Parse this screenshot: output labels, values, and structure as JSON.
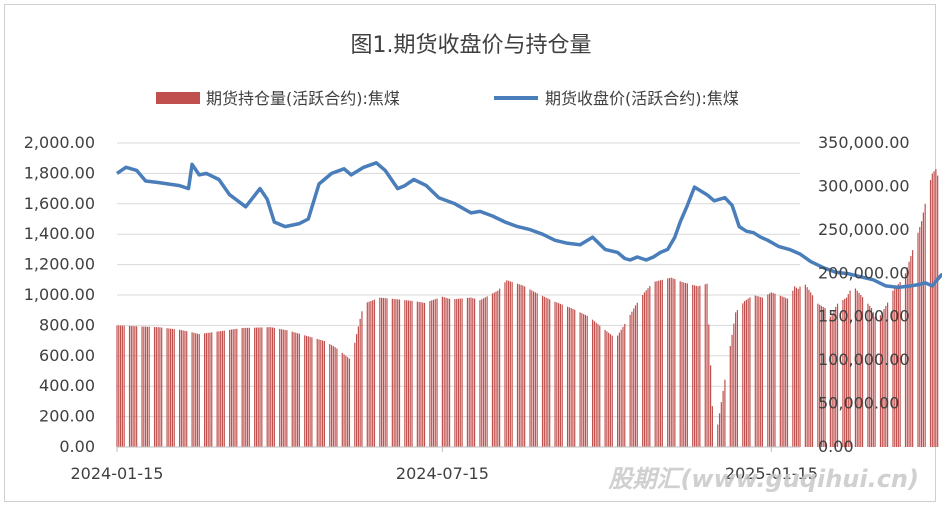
{
  "chart_data": {
    "type": "bar+line",
    "title": "图1.期货收盘价与持仓量",
    "legend_position": "top",
    "x_ticks": [
      "2024-01-15",
      "2024-07-15",
      "2025-01-15"
    ],
    "x_start": "2024-01-15",
    "x_end": "2025-01-31",
    "y_left": {
      "ticks": [
        "0.00",
        "200.00",
        "400.00",
        "600.00",
        "800.00",
        "1,000.00",
        "1,200.00",
        "1,400.00",
        "1,600.00",
        "1,800.00",
        "2,000.00"
      ],
      "lim": [
        0,
        2000
      ]
    },
    "y_right": {
      "ticks": [
        "0.00",
        "50,000.00",
        "100,000.00",
        "150,000.00",
        "200,000.00",
        "250,000.00",
        "300,000.00",
        "350,000.00"
      ],
      "lim": [
        0,
        350000
      ]
    },
    "grid": "horizontal",
    "series": [
      {
        "name": "期货持仓量(活跃合约):焦煤",
        "type": "bar",
        "axis": "right",
        "color": "#c0504d",
        "points": [
          [
            "2024-01-15",
            140000
          ],
          [
            "2024-02-07",
            138000
          ],
          [
            "2024-02-19",
            135000
          ],
          [
            "2024-02-24",
            133000
          ],
          [
            "2024-03-01",
            130000
          ],
          [
            "2024-03-15",
            134000
          ],
          [
            "2024-03-25",
            137000
          ],
          [
            "2024-04-10",
            138000
          ],
          [
            "2024-04-20",
            134000
          ],
          [
            "2024-04-30",
            128000
          ],
          [
            "2024-05-10",
            122000
          ],
          [
            "2024-05-16",
            115000
          ],
          [
            "2024-05-25",
            100000
          ],
          [
            "2024-05-28",
            130000
          ],
          [
            "2024-06-01",
            165000
          ],
          [
            "2024-06-10",
            172000
          ],
          [
            "2024-06-20",
            170000
          ],
          [
            "2024-06-29",
            168000
          ],
          [
            "2024-07-05",
            166000
          ],
          [
            "2024-07-15",
            173000
          ],
          [
            "2024-07-20",
            170000
          ],
          [
            "2024-07-31",
            172000
          ],
          [
            "2024-08-05",
            169000
          ],
          [
            "2024-08-15",
            180000
          ],
          [
            "2024-08-20",
            192000
          ],
          [
            "2024-08-29",
            186000
          ],
          [
            "2024-09-05",
            178000
          ],
          [
            "2024-09-15",
            168000
          ],
          [
            "2024-09-25",
            160000
          ],
          [
            "2024-10-05",
            150000
          ],
          [
            "2024-10-12",
            138000
          ],
          [
            "2024-10-20",
            125000
          ],
          [
            "2024-10-26",
            145000
          ],
          [
            "2024-10-31",
            163000
          ],
          [
            "2024-11-05",
            178000
          ],
          [
            "2024-11-10",
            190000
          ],
          [
            "2024-11-20",
            195000
          ],
          [
            "2024-11-26",
            190000
          ],
          [
            "2024-12-05",
            185000
          ],
          [
            "2024-12-10",
            188000
          ],
          [
            "2024-12-14",
            0
          ],
          [
            "2024-12-26",
            155000
          ],
          [
            "2024-12-31",
            168000
          ],
          [
            "2025-01-05",
            175000
          ],
          [
            "2025-01-10",
            172000
          ],
          [
            "2025-01-15",
            178000
          ],
          [
            "2025-01-19",
            175000
          ],
          [
            "2025-01-25",
            170000
          ],
          [
            "2025-01-28",
            185000
          ],
          [
            "2025-01-30",
            182000
          ],
          [
            "2025-02-02",
            190000
          ],
          [
            "2025-02-06",
            178000
          ],
          [
            "2025-02-10",
            165000
          ],
          [
            "2025-02-14",
            160000
          ],
          [
            "2025-02-17",
            150000
          ],
          [
            "2025-02-21",
            165000
          ],
          [
            "2025-02-26",
            172000
          ],
          [
            "2025-02-28",
            180000
          ],
          [
            "2025-03-02",
            185000
          ],
          [
            "2025-03-06",
            175000
          ],
          [
            "2025-03-12",
            160000
          ],
          [
            "2025-03-15",
            145000
          ],
          [
            "2025-03-18",
            155000
          ],
          [
            "2025-03-22",
            170000
          ],
          [
            "2025-03-24",
            180000
          ],
          [
            "2025-03-28",
            190000
          ],
          [
            "2025-03-31",
            200000
          ],
          [
            "2025-04-03",
            220000
          ],
          [
            "2025-04-06",
            240000
          ],
          [
            "2025-04-09",
            260000
          ],
          [
            "2025-04-11",
            280000
          ],
          [
            "2025-04-13",
            300000
          ],
          [
            "2025-04-15",
            315000
          ],
          [
            "2025-04-17",
            320000
          ],
          [
            "2025-04-19",
            305000
          ],
          [
            "2025-04-21",
            310000
          ],
          [
            "2025-04-23",
            285000
          ],
          [
            "2025-04-25",
            308000
          ]
        ]
      },
      {
        "name": "期货收盘价(活跃合约):焦煤",
        "type": "line",
        "axis": "left",
        "color": "#4a7ebb",
        "points": [
          [
            "2024-01-15",
            1800
          ],
          [
            "2024-01-20",
            1840
          ],
          [
            "2024-01-26",
            1820
          ],
          [
            "2024-01-31",
            1750
          ],
          [
            "2024-02-07",
            1740
          ],
          [
            "2024-02-19",
            1720
          ],
          [
            "2024-02-24",
            1700
          ],
          [
            "2024-02-26",
            1860
          ],
          [
            "2024-03-01",
            1790
          ],
          [
            "2024-03-05",
            1800
          ],
          [
            "2024-03-12",
            1760
          ],
          [
            "2024-03-18",
            1660
          ],
          [
            "2024-03-27",
            1580
          ],
          [
            "2024-04-04",
            1700
          ],
          [
            "2024-04-08",
            1630
          ],
          [
            "2024-04-12",
            1480
          ],
          [
            "2024-04-18",
            1450
          ],
          [
            "2024-04-26",
            1470
          ],
          [
            "2024-05-01",
            1500
          ],
          [
            "2024-05-07",
            1730
          ],
          [
            "2024-05-14",
            1800
          ],
          [
            "2024-05-21",
            1830
          ],
          [
            "2024-05-25",
            1790
          ],
          [
            "2024-06-01",
            1840
          ],
          [
            "2024-06-08",
            1870
          ],
          [
            "2024-06-13",
            1820
          ],
          [
            "2024-06-20",
            1700
          ],
          [
            "2024-06-24",
            1720
          ],
          [
            "2024-06-29",
            1760
          ],
          [
            "2024-07-06",
            1720
          ],
          [
            "2024-07-13",
            1640
          ],
          [
            "2024-07-22",
            1600
          ],
          [
            "2024-07-31",
            1540
          ],
          [
            "2024-08-05",
            1550
          ],
          [
            "2024-08-12",
            1520
          ],
          [
            "2024-08-19",
            1480
          ],
          [
            "2024-08-26",
            1450
          ],
          [
            "2024-09-02",
            1430
          ],
          [
            "2024-09-09",
            1400
          ],
          [
            "2024-09-16",
            1360
          ],
          [
            "2024-09-23",
            1340
          ],
          [
            "2024-09-30",
            1330
          ],
          [
            "2024-10-07",
            1380
          ],
          [
            "2024-10-14",
            1300
          ],
          [
            "2024-10-21",
            1280
          ],
          [
            "2024-10-25",
            1240
          ],
          [
            "2024-10-28",
            1230
          ],
          [
            "2024-11-01",
            1250
          ],
          [
            "2024-11-06",
            1230
          ],
          [
            "2024-11-10",
            1250
          ],
          [
            "2024-11-14",
            1280
          ],
          [
            "2024-11-18",
            1300
          ],
          [
            "2024-11-22",
            1380
          ],
          [
            "2024-11-25",
            1480
          ],
          [
            "2024-11-29",
            1590
          ],
          [
            "2024-12-03",
            1710
          ],
          [
            "2024-12-10",
            1660
          ],
          [
            "2024-12-14",
            1620
          ],
          [
            "2024-12-20",
            1640
          ],
          [
            "2024-12-24",
            1590
          ],
          [
            "2024-12-28",
            1450
          ],
          [
            "2025-01-01",
            1420
          ],
          [
            "2025-01-05",
            1410
          ],
          [
            "2025-01-09",
            1380
          ],
          [
            "2025-01-13",
            1360
          ],
          [
            "2025-01-19",
            1320
          ],
          [
            "2025-01-25",
            1300
          ],
          [
            "2025-01-31",
            1270
          ],
          [
            "2025-02-06",
            1220
          ],
          [
            "2025-02-13",
            1180
          ],
          [
            "2025-02-20",
            1150
          ],
          [
            "2025-02-27",
            1140
          ],
          [
            "2025-03-06",
            1120
          ],
          [
            "2025-03-13",
            1100
          ],
          [
            "2025-03-20",
            1060
          ],
          [
            "2025-03-27",
            1050
          ],
          [
            "2025-04-03",
            1060
          ],
          [
            "2025-04-08",
            1070
          ],
          [
            "2025-04-11",
            1080
          ],
          [
            "2025-04-15",
            1060
          ],
          [
            "2025-04-17",
            1090
          ],
          [
            "2025-04-20",
            1130
          ],
          [
            "2025-04-23",
            1150
          ],
          [
            "2025-04-25",
            1130
          ]
        ]
      }
    ]
  },
  "watermark": "股期汇(www.guqihui.cn)"
}
